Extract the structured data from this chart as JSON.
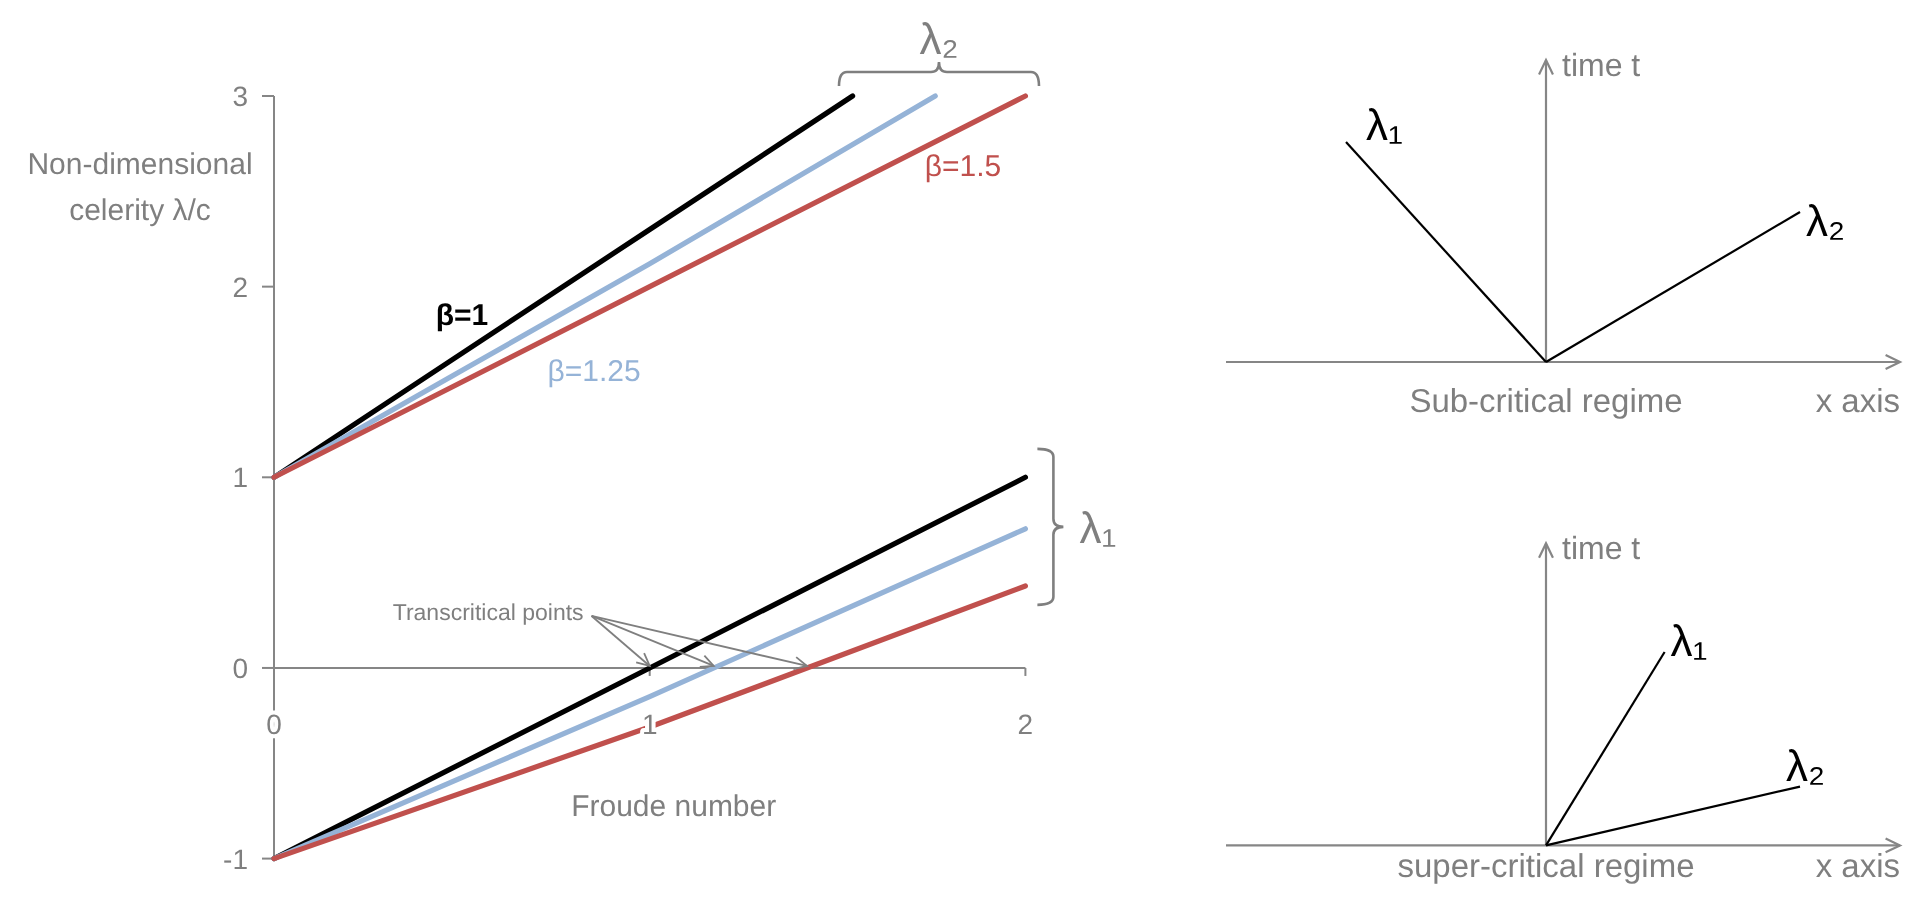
{
  "chart_data": [
    {
      "type": "line",
      "xlabel": "Froude number",
      "ylabel": "Non-dimensional celerity λ/c",
      "xlim": [
        0,
        2
      ],
      "ylim": [
        -1,
        3
      ],
      "xticks": [
        0,
        1,
        2
      ],
      "yticks": [
        -1,
        0,
        1,
        2,
        3
      ],
      "series": [
        {
          "name": "β=1",
          "color": "#000000",
          "x": [
            0,
            0.5,
            1,
            1.54
          ],
          "values": [
            1,
            1.65,
            2.3,
            3
          ]
        },
        {
          "name": "β=1.25",
          "color": "#95b3d7",
          "x": [
            0,
            0.5,
            1,
            1.76
          ],
          "values": [
            1,
            1.56,
            2.12,
            3
          ]
        },
        {
          "name": "β=1.5",
          "color": "#c0504d",
          "x": [
            0,
            1,
            2
          ],
          "values": [
            1,
            2,
            3
          ]
        },
        {
          "color": "#000000",
          "x": [
            0,
            1,
            2
          ],
          "values": [
            -1,
            0,
            1
          ]
        },
        {
          "color": "#95b3d7",
          "x": [
            0,
            1,
            2
          ],
          "values": [
            -1,
            -0.15,
            0.73
          ]
        },
        {
          "color": "#c0504d",
          "x": [
            0,
            1,
            2
          ],
          "values": [
            -1,
            -0.31,
            0.43
          ]
        }
      ],
      "annotations": [
        {
          "text": "λ₂",
          "x": 1.77,
          "y": 3
        },
        {
          "text": "λ₁",
          "x": 2,
          "y": 0.74
        },
        {
          "text": "Transcritical points",
          "x": 1.17,
          "y": 0
        }
      ]
    },
    {
      "type": "other",
      "title": "Sub-critical regime",
      "xlabel": "x axis",
      "ylabel": "time t",
      "annotations": [
        "λ₁",
        "λ₂"
      ]
    },
    {
      "type": "other",
      "title": "super-critical regime",
      "xlabel": "x axis",
      "ylabel": "time t",
      "annotations": [
        "λ₁",
        "λ₂"
      ]
    }
  ]
}
